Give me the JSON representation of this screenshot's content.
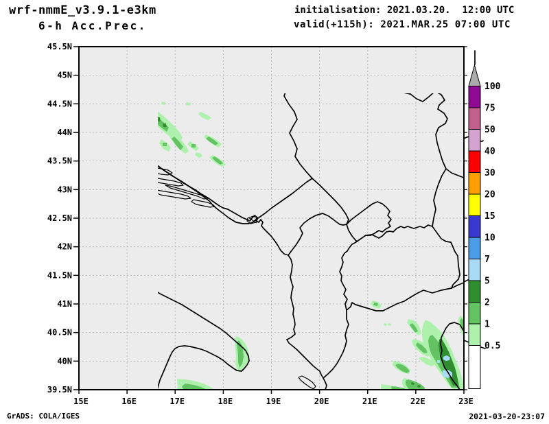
{
  "header": {
    "model": "wrf-nmmE_v3.9.1-e3km",
    "product": "6-h Acc.Prec.",
    "init_line": "initialisation: 2021.03.20.  12:00 UTC",
    "valid_line": "valid(+115h): 2021.MAR.25 07:00 UTC"
  },
  "map": {
    "lat_labels": [
      "45.5N",
      "45N",
      "44.5N",
      "44N",
      "43.5N",
      "43N",
      "42.5N",
      "42N",
      "41.5N",
      "41N",
      "40.5N",
      "40N",
      "39.5N"
    ],
    "lon_labels": [
      "15E",
      "16E",
      "17E",
      "18E",
      "19E",
      "20E",
      "21E",
      "22E",
      "23E"
    ],
    "background_color": "#ececec",
    "gridline_color": "#b8b8b8"
  },
  "colorbar": {
    "tick_labels": [
      "100",
      "75",
      "50",
      "40",
      "30",
      "20",
      "15",
      "10",
      "7",
      "5",
      "2",
      "1",
      "0.5"
    ],
    "segment_colors_top_to_bottom": [
      "#8e0a92",
      "#c2608c",
      "#d5a3d2",
      "#fa0000",
      "#ff9e00",
      "#fefe00",
      "#3939cf",
      "#4b9ce4",
      "#a9dbf6",
      "#2f8f2f",
      "#63c363",
      "#adf1ad",
      "#ffffff"
    ],
    "overflow_arrow_color": "#ababab",
    "units_implied": "mm"
  },
  "precipitation_regions": [
    {
      "area": "central Bosnia band (16.3-18.3E, 43.2-44.7N)",
      "intensity_mm": "0.5-5"
    },
    {
      "area": "southern Italy / Gulf of Taranto (15.3-18.2E, 39.5-41.8N)",
      "intensity_mm": "0.5-5"
    },
    {
      "area": "northern Greece / Thermaic coast (21.4-23E, 39.5-40.8N)",
      "intensity_mm": "0.5-7"
    }
  ],
  "footer": {
    "credit": "GrADS: COLA/IGES",
    "timestamp": "2021-03-20-23:07"
  }
}
